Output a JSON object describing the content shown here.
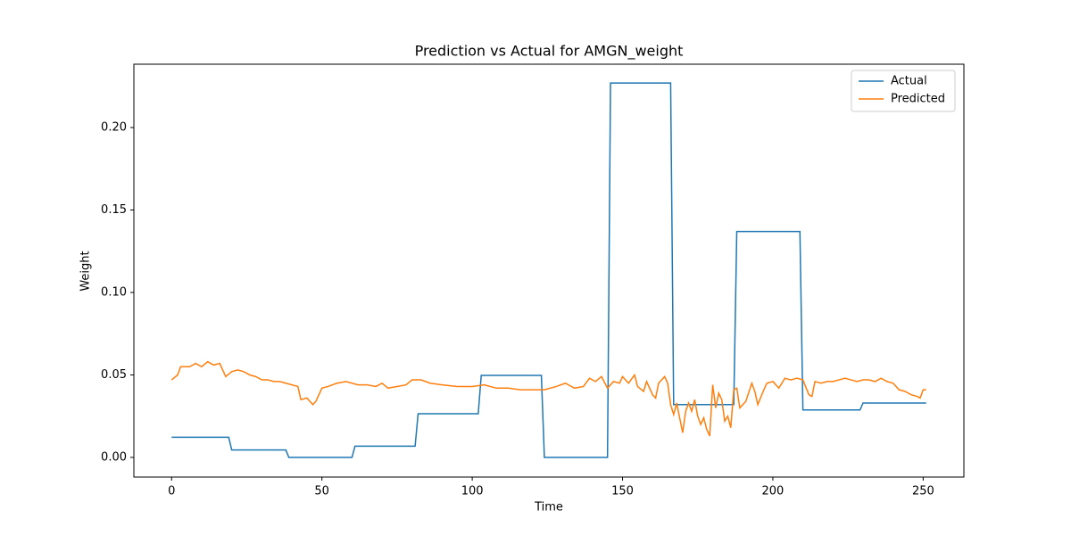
{
  "chart_data": {
    "type": "line",
    "title": "Prediction vs Actual for AMGN_weight",
    "x_label": "Time",
    "y_label": "Weight",
    "xlim": [
      -12.55,
      263.55
    ],
    "xticks": [
      0,
      50,
      100,
      150,
      200,
      250
    ],
    "ylim": [
      -0.0119,
      0.2384
    ],
    "yticks": [
      {
        "value": 0,
        "label": "0.00"
      },
      {
        "value": 0.05,
        "label": "0.05"
      },
      {
        "value": 0.1,
        "label": "0.10"
      },
      {
        "value": 0.15,
        "label": "0.15"
      },
      {
        "value": 0.2,
        "label": "0.20"
      }
    ],
    "legend": "upper right",
    "grid": false,
    "series": [
      {
        "name": "Actual",
        "color": "#1f77b4",
        "x": [
          0,
          19,
          20,
          38,
          39,
          60,
          61,
          81,
          82,
          102,
          103,
          123,
          124,
          145,
          146,
          166,
          167,
          187,
          188,
          209,
          210,
          229,
          230,
          251
        ],
        "values": [
          0.0122,
          0.0122,
          0.0045,
          0.0045,
          0,
          0,
          0.0068,
          0.0068,
          0.0265,
          0.0265,
          0.0497,
          0.0497,
          0,
          0,
          0.227,
          0.227,
          0.032,
          0.032,
          0.137,
          0.137,
          0.0288,
          0.0288,
          0.033,
          0.033
        ]
      },
      {
        "name": "Predicted",
        "color": "#ff7f0e",
        "x": [
          0,
          2,
          3,
          6,
          8,
          10,
          12,
          14,
          16,
          18,
          20,
          22,
          24,
          26,
          28,
          30,
          32,
          34,
          36,
          38,
          40,
          42,
          43,
          45,
          47,
          48,
          50,
          52,
          55,
          58,
          62,
          65,
          68,
          70,
          72,
          75,
          78,
          80,
          83,
          86,
          90,
          95,
          100,
          104,
          108,
          112,
          116,
          120,
          124,
          128,
          131,
          134,
          137,
          139,
          141,
          143,
          145,
          147,
          149,
          150,
          152,
          154,
          155,
          157,
          158,
          160,
          161,
          162,
          164,
          165,
          166,
          167,
          168,
          170,
          171,
          172,
          173,
          174,
          175,
          176,
          177,
          178,
          179,
          180,
          181,
          182,
          183,
          184,
          185,
          186,
          187,
          188,
          189,
          191,
          193,
          194,
          195,
          197,
          198,
          200,
          202,
          204,
          206,
          208,
          210,
          212,
          213,
          214,
          216,
          218,
          220,
          222,
          224,
          226,
          228,
          230,
          232,
          234,
          236,
          238,
          240,
          242,
          244,
          246,
          248,
          249,
          250,
          251
        ],
        "values": [
          0.047,
          0.05,
          0.055,
          0.055,
          0.057,
          0.055,
          0.058,
          0.056,
          0.057,
          0.049,
          0.052,
          0.053,
          0.052,
          0.05,
          0.049,
          0.047,
          0.047,
          0.046,
          0.046,
          0.045,
          0.044,
          0.043,
          0.035,
          0.036,
          0.032,
          0.034,
          0.042,
          0.043,
          0.045,
          0.046,
          0.044,
          0.044,
          0.043,
          0.045,
          0.042,
          0.043,
          0.044,
          0.047,
          0.047,
          0.045,
          0.044,
          0.043,
          0.043,
          0.044,
          0.042,
          0.042,
          0.041,
          0.041,
          0.041,
          0.043,
          0.045,
          0.042,
          0.043,
          0.048,
          0.046,
          0.049,
          0.042,
          0.046,
          0.045,
          0.049,
          0.045,
          0.05,
          0.043,
          0.04,
          0.046,
          0.038,
          0.036,
          0.045,
          0.049,
          0.045,
          0.032,
          0.026,
          0.033,
          0.015,
          0.028,
          0.033,
          0.028,
          0.035,
          0.025,
          0.02,
          0.024,
          0.017,
          0.013,
          0.044,
          0.03,
          0.039,
          0.035,
          0.022,
          0.025,
          0.018,
          0.041,
          0.042,
          0.03,
          0.034,
          0.045,
          0.04,
          0.032,
          0.041,
          0.045,
          0.046,
          0.042,
          0.048,
          0.047,
          0.048,
          0.047,
          0.038,
          0.037,
          0.046,
          0.045,
          0.046,
          0.046,
          0.047,
          0.048,
          0.047,
          0.046,
          0.047,
          0.047,
          0.046,
          0.048,
          0.046,
          0.045,
          0.041,
          0.04,
          0.038,
          0.037,
          0.036,
          0.041,
          0.041
        ]
      }
    ]
  }
}
